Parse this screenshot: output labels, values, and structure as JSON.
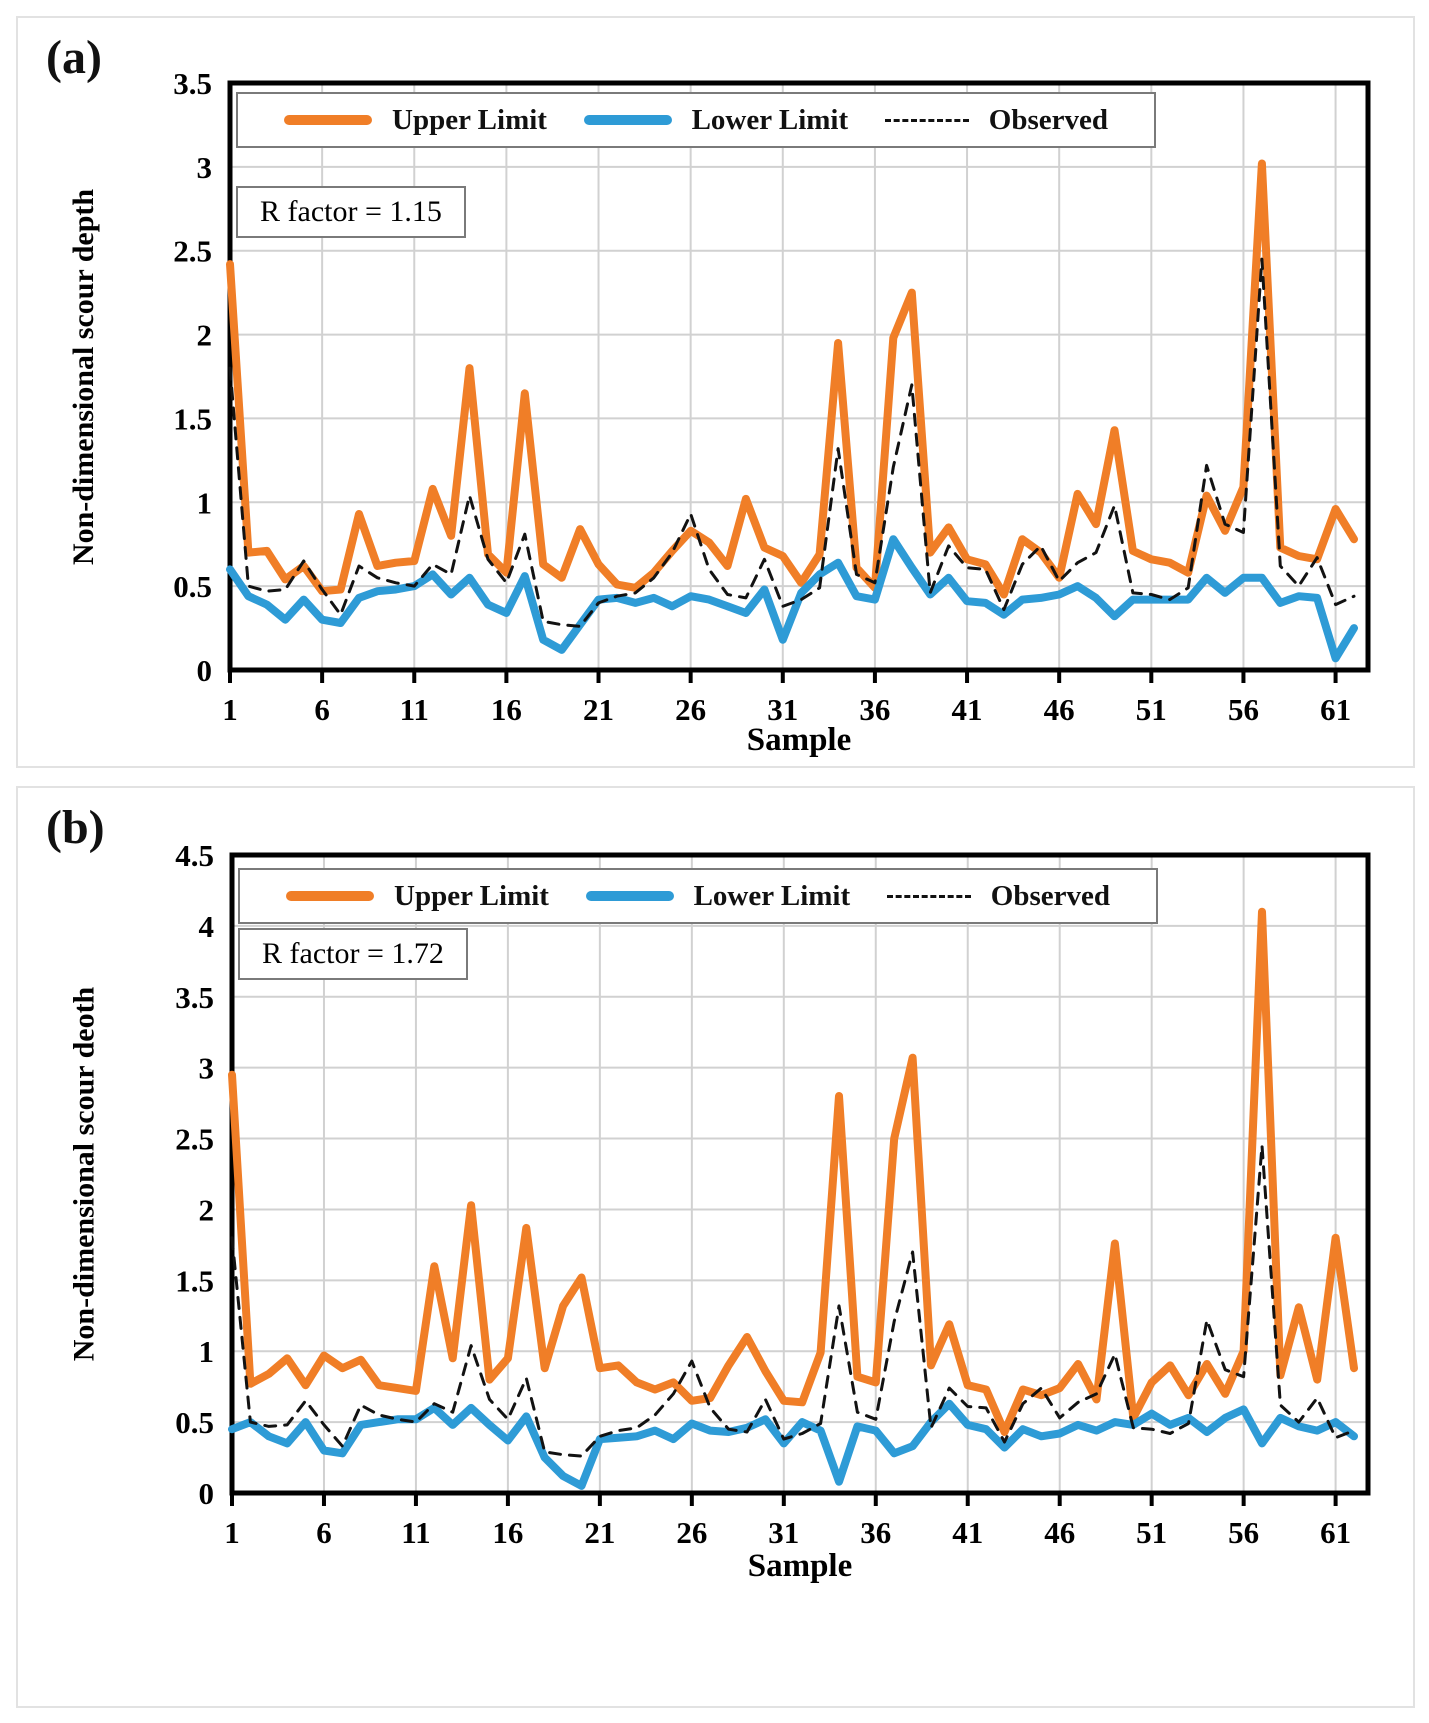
{
  "legend": {
    "upper_label": "Upper Limit",
    "lower_label": "Lower Limit",
    "observed_label": "Observed"
  },
  "chart_data": [
    {
      "type": "line",
      "panel_label": "(a)",
      "r_factor_label": "R factor = 1.15",
      "r_factor_value": 1.15,
      "xlabel": "Sample",
      "ylabel": "Non-dimensional  scour depth",
      "n_samples": 62,
      "x_ticks": [
        1,
        6,
        11,
        16,
        21,
        26,
        31,
        36,
        41,
        46,
        51,
        56,
        61
      ],
      "ylim": [
        0,
        3.5
      ],
      "y_ticks": [
        "0",
        "0.5",
        "1",
        "1.5",
        "2",
        "2.5",
        "3",
        "3.5"
      ],
      "grid": true,
      "legend_position": "top-inside",
      "colors": {
        "grid": "#d1d1d1",
        "border": "#000000"
      },
      "series": [
        {
          "key": "upper-limit",
          "name": "Upper Limit",
          "color": "#f07e27",
          "width": 8,
          "values": [
            2.42,
            0.7,
            0.71,
            0.54,
            0.62,
            0.47,
            0.48,
            0.93,
            0.62,
            0.64,
            0.65,
            1.08,
            0.8,
            1.8,
            0.69,
            0.58,
            1.65,
            0.63,
            0.55,
            0.84,
            0.63,
            0.51,
            0.49,
            0.58,
            0.71,
            0.83,
            0.76,
            0.62,
            1.02,
            0.73,
            0.68,
            0.52,
            0.69,
            1.95,
            0.61,
            0.49,
            1.98,
            2.25,
            0.7,
            0.85,
            0.66,
            0.63,
            0.45,
            0.78,
            0.7,
            0.55,
            1.05,
            0.87,
            1.43,
            0.71,
            0.66,
            0.64,
            0.58,
            1.04,
            0.83,
            1.09,
            3.02,
            0.73,
            0.68,
            0.66,
            0.96,
            0.78
          ]
        },
        {
          "key": "lower-limit",
          "name": "Lower Limit",
          "color": "#2e9bd6",
          "width": 8,
          "values": [
            0.6,
            0.44,
            0.39,
            0.3,
            0.42,
            0.3,
            0.28,
            0.43,
            0.47,
            0.48,
            0.5,
            0.57,
            0.45,
            0.55,
            0.39,
            0.34,
            0.56,
            0.18,
            0.12,
            0.27,
            0.42,
            0.43,
            0.4,
            0.43,
            0.38,
            0.44,
            0.42,
            0.38,
            0.34,
            0.48,
            0.18,
            0.46,
            0.57,
            0.64,
            0.44,
            0.42,
            0.78,
            0.61,
            0.45,
            0.55,
            0.41,
            0.4,
            0.33,
            0.42,
            0.43,
            0.45,
            0.5,
            0.43,
            0.32,
            0.42,
            0.42,
            0.42,
            0.42,
            0.55,
            0.46,
            0.55,
            0.55,
            0.4,
            0.44,
            0.43,
            0.07,
            0.25
          ]
        },
        {
          "key": "observed",
          "name": "Observed",
          "color": "#121212",
          "width": 3,
          "dash": "11 9",
          "values": [
            1.8,
            0.5,
            0.47,
            0.48,
            0.65,
            0.48,
            0.33,
            0.62,
            0.55,
            0.52,
            0.5,
            0.63,
            0.57,
            1.04,
            0.66,
            0.52,
            0.81,
            0.29,
            0.27,
            0.26,
            0.4,
            0.44,
            0.46,
            0.55,
            0.7,
            0.93,
            0.6,
            0.45,
            0.43,
            0.66,
            0.38,
            0.42,
            0.49,
            1.32,
            0.57,
            0.52,
            1.21,
            1.7,
            0.46,
            0.74,
            0.61,
            0.6,
            0.36,
            0.63,
            0.74,
            0.53,
            0.64,
            0.7,
            0.98,
            0.46,
            0.45,
            0.42,
            0.49,
            1.22,
            0.87,
            0.82,
            2.45,
            0.62,
            0.5,
            0.67,
            0.39,
            0.44
          ]
        }
      ]
    },
    {
      "type": "line",
      "panel_label": "(b)",
      "r_factor_label": "R factor = 1.72",
      "r_factor_value": 1.72,
      "xlabel": "Sample",
      "ylabel": "Non-dimensional  scour deoth",
      "n_samples": 62,
      "x_ticks": [
        1,
        6,
        11,
        16,
        21,
        26,
        31,
        36,
        41,
        46,
        51,
        56,
        61
      ],
      "ylim": [
        0,
        4.5
      ],
      "y_ticks": [
        "0",
        "0.5",
        "1",
        "1.5",
        "2",
        "2.5",
        "3",
        "3.5",
        "4",
        "4.5"
      ],
      "grid": true,
      "legend_position": "top-inside",
      "colors": {
        "grid": "#d1d1d1",
        "border": "#000000"
      },
      "series": [
        {
          "key": "upper-limit",
          "name": "Upper Limit",
          "color": "#f07e27",
          "width": 8,
          "values": [
            2.95,
            0.77,
            0.84,
            0.95,
            0.76,
            0.97,
            0.88,
            0.94,
            0.76,
            0.74,
            0.72,
            1.6,
            0.95,
            2.03,
            0.8,
            0.95,
            1.87,
            0.88,
            1.32,
            1.52,
            0.88,
            0.9,
            0.78,
            0.73,
            0.78,
            0.65,
            0.67,
            0.9,
            1.1,
            0.86,
            0.65,
            0.64,
            0.99,
            2.8,
            0.82,
            0.78,
            2.5,
            3.07,
            0.9,
            1.19,
            0.76,
            0.73,
            0.43,
            0.73,
            0.69,
            0.74,
            0.91,
            0.66,
            1.76,
            0.53,
            0.78,
            0.9,
            0.69,
            0.91,
            0.7,
            1.0,
            4.1,
            0.83,
            1.31,
            0.8,
            1.8,
            0.88
          ]
        },
        {
          "key": "lower-limit",
          "name": "Lower Limit",
          "color": "#2e9bd6",
          "width": 8,
          "values": [
            0.45,
            0.5,
            0.4,
            0.35,
            0.5,
            0.3,
            0.28,
            0.48,
            0.5,
            0.52,
            0.52,
            0.6,
            0.48,
            0.6,
            0.48,
            0.37,
            0.54,
            0.25,
            0.12,
            0.05,
            0.38,
            0.39,
            0.4,
            0.44,
            0.38,
            0.49,
            0.44,
            0.43,
            0.46,
            0.52,
            0.35,
            0.5,
            0.44,
            0.08,
            0.47,
            0.44,
            0.28,
            0.33,
            0.5,
            0.63,
            0.48,
            0.45,
            0.32,
            0.45,
            0.4,
            0.42,
            0.48,
            0.44,
            0.5,
            0.48,
            0.56,
            0.48,
            0.53,
            0.43,
            0.53,
            0.59,
            0.35,
            0.53,
            0.47,
            0.44,
            0.5,
            0.4
          ]
        },
        {
          "key": "observed",
          "name": "Observed",
          "color": "#121212",
          "width": 3,
          "dash": "11 9",
          "values": [
            1.8,
            0.5,
            0.47,
            0.48,
            0.65,
            0.48,
            0.33,
            0.62,
            0.55,
            0.52,
            0.5,
            0.63,
            0.57,
            1.04,
            0.66,
            0.52,
            0.81,
            0.29,
            0.27,
            0.26,
            0.4,
            0.44,
            0.46,
            0.55,
            0.7,
            0.93,
            0.6,
            0.45,
            0.43,
            0.66,
            0.38,
            0.42,
            0.49,
            1.32,
            0.57,
            0.52,
            1.21,
            1.7,
            0.46,
            0.74,
            0.61,
            0.6,
            0.36,
            0.63,
            0.74,
            0.53,
            0.64,
            0.7,
            0.98,
            0.46,
            0.45,
            0.42,
            0.49,
            1.22,
            0.87,
            0.82,
            2.45,
            0.62,
            0.5,
            0.67,
            0.39,
            0.44
          ]
        }
      ]
    }
  ]
}
